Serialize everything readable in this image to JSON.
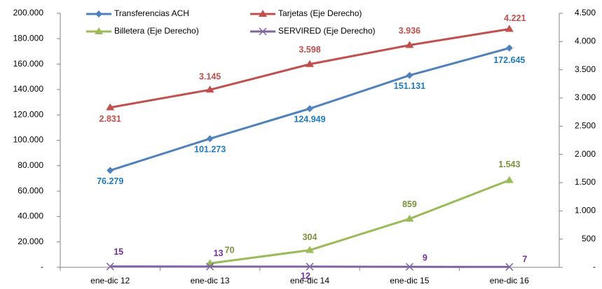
{
  "chart_data": {
    "type": "line",
    "categories": [
      "ene-dic 12",
      "ene-dic 13",
      "ene-dic 14",
      "ene-dic 15",
      "ene-dic 16"
    ],
    "ylim": [
      0,
      200000
    ],
    "yticks": [
      {
        "value": 0,
        "label": "-"
      },
      {
        "value": 20000,
        "label": "20.000"
      },
      {
        "value": 40000,
        "label": "40.000"
      },
      {
        "value": 60000,
        "label": "60.000"
      },
      {
        "value": 80000,
        "label": "80.000"
      },
      {
        "value": 100000,
        "label": "100.000"
      },
      {
        "value": 120000,
        "label": "120.000"
      },
      {
        "value": 140000,
        "label": "140.000"
      },
      {
        "value": 160000,
        "label": "160.000"
      },
      {
        "value": 180000,
        "label": "180.000"
      },
      {
        "value": 200000,
        "label": "200.000"
      }
    ],
    "y2lim": [
      0,
      4500
    ],
    "y2ticks": [
      {
        "value": 0,
        "label": "-"
      },
      500,
      {
        "value": 1000,
        "label": "1.000"
      },
      {
        "value": 1500,
        "label": "1.500"
      },
      {
        "value": 2000,
        "label": "2.000"
      },
      {
        "value": 2500,
        "label": "2.500"
      },
      {
        "value": 3000,
        "label": "3.000"
      },
      {
        "value": 3500,
        "label": "3.500"
      },
      {
        "value": 4000,
        "label": "4.000"
      },
      {
        "value": 4500,
        "label": "4.500"
      }
    ],
    "legend": "top",
    "series": [
      {
        "name": "Transferencias ACH",
        "color": "#4f81bd",
        "label_color": "#1f7bc0",
        "marker": "diamond",
        "values": [
          76279,
          101273,
          124949,
          151131,
          172645
        ],
        "value_labels": [
          "76.279",
          "101.273",
          "124.949",
          "151.131",
          "172.645"
        ]
      },
      {
        "name": "Tarjetas (Eje Derecho)",
        "color": "#c0504d",
        "label_color": "#c0504d",
        "marker": "triangle",
        "axis": "y2",
        "values": [
          2831,
          3145,
          3598,
          3936,
          4221
        ],
        "value_labels": [
          "2.831",
          "3.145",
          "3.598",
          "3.936",
          "4.221"
        ]
      },
      {
        "name": "Billetera (Eje Derecho)",
        "color": "#9bbb59",
        "label_color": "#77933c",
        "marker": "triangle",
        "axis": "y2",
        "values": [
          null,
          70,
          304,
          859,
          1543
        ],
        "value_labels": [
          null,
          "70",
          "304",
          "859",
          "1.543"
        ]
      },
      {
        "name": "SERVIRED (Eje Derecho)",
        "color": "#8064a2",
        "label_color": "#7030a0",
        "marker": "x",
        "axis": "y2",
        "values": [
          15,
          13,
          12,
          9,
          7
        ],
        "value_labels": [
          "15",
          "13",
          "12",
          "9",
          "7"
        ]
      }
    ]
  }
}
